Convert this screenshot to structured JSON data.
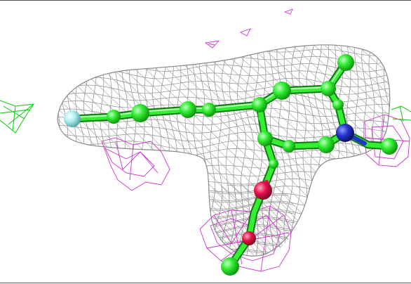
{
  "viewer": {
    "background_color": "#ffffff",
    "frame_color": "#555555"
  },
  "map": {
    "mesh_2fofc_color": "#9a9a9a",
    "mesh_positive_color": "#00cc00",
    "mesh_negative_color": "#cc33cc"
  },
  "atoms": {
    "carbon_color": "#33ee33",
    "nitrogen_color": "#2233cc",
    "oxygen_color": "#e8104a",
    "fluorine_color": "#aaeeee"
  }
}
